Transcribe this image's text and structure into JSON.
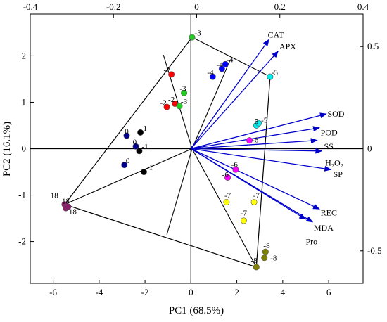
{
  "chart_data": {
    "type": "scatter",
    "title": "",
    "xlabel": "PC1 (68.5%)",
    "ylabel": "PC2 (16.1%)",
    "xlim": [
      -7,
      7.5
    ],
    "ylim": [
      -2.9,
      2.9
    ],
    "x_ticks": [
      "-6",
      "-4",
      "-2",
      "0",
      "2",
      "4",
      "6"
    ],
    "y_ticks": [
      "-2",
      "-1",
      "0",
      "1",
      "2"
    ],
    "top_ticks": [
      "-0.4",
      "-0.2",
      "0",
      "0.2",
      "0.4"
    ],
    "right_ticks": [
      "-0.5",
      "0",
      "0.5"
    ],
    "grid": false,
    "hull_points": [
      [
        0.05,
        2.4
      ],
      [
        3.45,
        1.55
      ],
      [
        2.85,
        -2.55
      ],
      [
        -5.5,
        -1.2
      ]
    ],
    "sector_lines": [
      {
        "from": [
          0.05,
          0.0
        ],
        "to": [
          1.7,
          1.9
        ]
      },
      {
        "from": [
          0.05,
          0.0
        ],
        "to": [
          -1.2,
          2.02
        ]
      },
      {
        "from": [
          0.05,
          0.0
        ],
        "to": [
          -5.5,
          -1.2
        ]
      },
      {
        "from": [
          0.05,
          0.0
        ],
        "to": [
          -1.05,
          -1.85
        ]
      },
      {
        "from": [
          0.05,
          0.0
        ],
        "to": [
          2.85,
          -2.55
        ]
      }
    ],
    "loadings": [
      {
        "label": "CAT",
        "x": 3.4,
        "y": 2.35,
        "lx": 3.35,
        "ly": 2.45
      },
      {
        "label": "APX",
        "x": 3.8,
        "y": 2.1,
        "lx": 3.85,
        "ly": 2.2
      },
      {
        "label": "SOD",
        "x": 5.9,
        "y": 0.75,
        "lx": 5.95,
        "ly": 0.75
      },
      {
        "label": "POD",
        "x": 5.6,
        "y": 0.45,
        "lx": 5.65,
        "ly": 0.35
      },
      {
        "label": "SS",
        "x": 5.5,
        "y": 0.18,
        "lx": 5.8,
        "ly": 0.05
      },
      {
        "label": "H₂O₂",
        "x": 5.7,
        "y": -0.05,
        "lx": 5.85,
        "ly": -0.3
      },
      {
        "label": "SP",
        "x": 6.1,
        "y": -0.45,
        "lx": 6.2,
        "ly": -0.55
      },
      {
        "label": "REC",
        "x": 5.6,
        "y": -1.3,
        "lx": 5.65,
        "ly": -1.38
      },
      {
        "label": "MDA",
        "x": 5.3,
        "y": -1.58,
        "lx": 5.35,
        "ly": -1.7
      },
      {
        "label": "Pro",
        "x": 5.0,
        "y": -1.52,
        "lx": 5.0,
        "ly": -2.0
      }
    ],
    "series": [
      {
        "name": "",
        "color": "#00008b",
        "points": [
          [
            -2.8,
            0.28
          ],
          [
            -2.4,
            0.05
          ],
          [
            -2.9,
            -0.35
          ]
        ],
        "labels": [
          {
            "text": "0",
            "x": -2.8,
            "y": 0.38
          },
          {
            "text": "0",
            "x": -2.45,
            "y": 0.15
          },
          {
            "text": "0",
            "x": -2.75,
            "y": -0.25
          }
        ]
      },
      {
        "name": "",
        "color": "#000000",
        "points": [
          [
            -2.2,
            0.35
          ],
          [
            -2.25,
            -0.05
          ],
          [
            -2.05,
            -0.5
          ]
        ],
        "labels": [
          {
            "text": "-1",
            "x": -2.05,
            "y": 0.45
          },
          {
            "text": "-1",
            "x": -2.0,
            "y": 0.05
          },
          {
            "text": "-1",
            "x": -1.8,
            "y": -0.4
          }
        ]
      },
      {
        "name": "",
        "color": "#ff0000",
        "points": [
          [
            -0.85,
            1.6
          ],
          [
            -1.05,
            0.9
          ],
          [
            -0.7,
            0.97
          ]
        ],
        "labels": [
          {
            "text": "-2",
            "x": -1.05,
            "y": 1.7
          },
          {
            "text": "-2",
            "x": -1.2,
            "y": 1.0
          },
          {
            "text": "-2",
            "x": -0.85,
            "y": 1.07
          }
        ]
      },
      {
        "name": "",
        "color": "#22cc22",
        "points": [
          [
            -0.3,
            1.2
          ],
          [
            -0.5,
            0.92
          ],
          [
            0.05,
            2.4
          ]
        ],
        "labels": [
          {
            "text": "-3",
            "x": -0.35,
            "y": 1.3
          },
          {
            "text": "-3",
            "x": -0.3,
            "y": 1.02
          },
          {
            "text": "-3",
            "x": 0.3,
            "y": 2.5
          }
        ]
      },
      {
        "name": "",
        "color": "#0000ff",
        "points": [
          [
            0.95,
            1.55
          ],
          [
            1.35,
            1.72
          ],
          [
            1.5,
            1.82
          ]
        ],
        "labels": [
          {
            "text": "-4",
            "x": 0.85,
            "y": 1.65
          },
          {
            "text": "-4",
            "x": 1.25,
            "y": 1.82
          },
          {
            "text": "-4",
            "x": 1.7,
            "y": 1.92
          }
        ]
      },
      {
        "name": "",
        "color": "#00eeee",
        "points": [
          [
            3.45,
            1.55
          ],
          [
            2.85,
            0.5
          ],
          [
            2.95,
            0.55
          ]
        ],
        "labels": [
          {
            "text": "-5",
            "x": 3.65,
            "y": 1.65
          },
          {
            "text": "-5",
            "x": 2.8,
            "y": 0.6
          },
          {
            "text": "-5",
            "x": 3.2,
            "y": 0.62
          }
        ]
      },
      {
        "name": "",
        "color": "#ff00ff",
        "points": [
          [
            2.55,
            0.18
          ],
          [
            1.95,
            -0.45
          ],
          [
            1.6,
            -0.62
          ]
        ],
        "labels": [
          {
            "text": "-6",
            "x": 2.8,
            "y": 0.2
          },
          {
            "text": "-6",
            "x": 1.9,
            "y": -0.33
          },
          {
            "text": "-6",
            "x": 1.5,
            "y": -0.55
          }
        ]
      },
      {
        "name": "",
        "color": "#ffff00",
        "points": [
          [
            1.55,
            -1.15
          ],
          [
            2.75,
            -1.15
          ],
          [
            2.3,
            -1.55
          ]
        ],
        "labels": [
          {
            "text": "-7",
            "x": 1.6,
            "y": -1.0
          },
          {
            "text": "-7",
            "x": 2.85,
            "y": -1.0
          },
          {
            "text": "-7",
            "x": 2.3,
            "y": -1.38
          }
        ]
      },
      {
        "name": "",
        "color": "#808000",
        "points": [
          [
            2.85,
            -2.55
          ],
          [
            3.25,
            -2.22
          ],
          [
            3.2,
            -2.35
          ]
        ],
        "labels": [
          {
            "text": "-8",
            "x": 2.75,
            "y": -2.4
          },
          {
            "text": "-8",
            "x": 3.3,
            "y": -2.08
          },
          {
            "text": "-8",
            "x": 3.6,
            "y": -2.35
          }
        ]
      },
      {
        "name": "",
        "color": "#8b1a6b",
        "points": [
          [
            -5.5,
            -1.2
          ],
          [
            -5.45,
            -1.28
          ],
          [
            -5.35,
            -1.25
          ]
        ],
        "labels": [
          {
            "text": "18",
            "x": -5.95,
            "y": -1.0
          },
          {
            "text": "18",
            "x": -5.45,
            "y": -1.12
          },
          {
            "text": "18",
            "x": -5.15,
            "y": -1.35
          }
        ]
      }
    ]
  }
}
